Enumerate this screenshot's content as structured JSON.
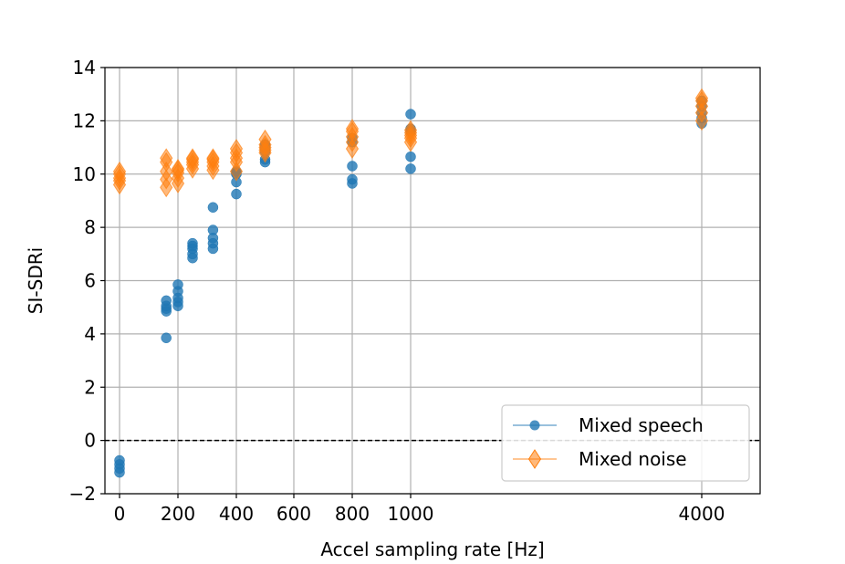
{
  "chart_data": {
    "type": "scatter",
    "xlabel": "Accel sampling rate [Hz]",
    "ylabel": "SI-SDRi",
    "ylim": [
      -2,
      14
    ],
    "yticks": [
      -2,
      0,
      2,
      4,
      6,
      8,
      10,
      12,
      14
    ],
    "ytick_labels": [
      "−2",
      "0",
      "2",
      "4",
      "6",
      "8",
      "10",
      "12",
      "14"
    ],
    "xticks": [
      {
        "value": 0,
        "label": "0"
      },
      {
        "value": 200,
        "label": "200"
      },
      {
        "value": 400,
        "label": "400"
      },
      {
        "value": 600,
        "label": "600"
      },
      {
        "value": 800,
        "label": "800"
      },
      {
        "value": 1000,
        "label": "1000"
      },
      {
        "value": 4000,
        "label": "4000"
      }
    ],
    "grid": true,
    "reference_line": {
      "y": 0,
      "style": "dashed",
      "color": "#000000"
    },
    "legend_position": "lower-right",
    "series": [
      {
        "name": "Mixed speech",
        "color": "#1f77b4",
        "marker": "circle",
        "points": [
          {
            "x": 0,
            "y": -0.75
          },
          {
            "x": 0,
            "y": -0.9
          },
          {
            "x": 0,
            "y": -1.05
          },
          {
            "x": 0,
            "y": -1.2
          },
          {
            "x": 160,
            "y": 3.85
          },
          {
            "x": 160,
            "y": 4.85
          },
          {
            "x": 160,
            "y": 4.95
          },
          {
            "x": 160,
            "y": 5.05
          },
          {
            "x": 160,
            "y": 5.25
          },
          {
            "x": 200,
            "y": 5.05
          },
          {
            "x": 200,
            "y": 5.2
          },
          {
            "x": 200,
            "y": 5.35
          },
          {
            "x": 200,
            "y": 5.6
          },
          {
            "x": 200,
            "y": 5.85
          },
          {
            "x": 250,
            "y": 6.85
          },
          {
            "x": 250,
            "y": 7.0
          },
          {
            "x": 250,
            "y": 7.2
          },
          {
            "x": 250,
            "y": 7.3
          },
          {
            "x": 250,
            "y": 7.4
          },
          {
            "x": 320,
            "y": 7.2
          },
          {
            "x": 320,
            "y": 7.4
          },
          {
            "x": 320,
            "y": 7.6
          },
          {
            "x": 320,
            "y": 7.9
          },
          {
            "x": 320,
            "y": 8.75
          },
          {
            "x": 400,
            "y": 9.25
          },
          {
            "x": 400,
            "y": 9.7
          },
          {
            "x": 400,
            "y": 10.0
          },
          {
            "x": 400,
            "y": 10.05
          },
          {
            "x": 400,
            "y": 10.1
          },
          {
            "x": 500,
            "y": 10.45
          },
          {
            "x": 500,
            "y": 10.55
          },
          {
            "x": 500,
            "y": 10.85
          },
          {
            "x": 500,
            "y": 11.0
          },
          {
            "x": 500,
            "y": 11.1
          },
          {
            "x": 800,
            "y": 9.65
          },
          {
            "x": 800,
            "y": 9.8
          },
          {
            "x": 800,
            "y": 10.3
          },
          {
            "x": 800,
            "y": 11.2
          },
          {
            "x": 800,
            "y": 11.35
          },
          {
            "x": 1000,
            "y": 10.2
          },
          {
            "x": 1000,
            "y": 10.65
          },
          {
            "x": 1000,
            "y": 11.6
          },
          {
            "x": 1000,
            "y": 11.7
          },
          {
            "x": 1000,
            "y": 12.25
          },
          {
            "x": 4000,
            "y": 11.9
          },
          {
            "x": 4000,
            "y": 12.1
          },
          {
            "x": 4000,
            "y": 12.3
          },
          {
            "x": 4000,
            "y": 12.55
          },
          {
            "x": 4000,
            "y": 12.75
          }
        ]
      },
      {
        "name": "Mixed noise",
        "color": "#ff7f0e",
        "marker": "diamond",
        "points": [
          {
            "x": 0,
            "y": 9.6
          },
          {
            "x": 0,
            "y": 9.75
          },
          {
            "x": 0,
            "y": 9.85
          },
          {
            "x": 0,
            "y": 10.0
          },
          {
            "x": 0,
            "y": 10.1
          },
          {
            "x": 160,
            "y": 9.5
          },
          {
            "x": 160,
            "y": 9.8
          },
          {
            "x": 160,
            "y": 10.1
          },
          {
            "x": 160,
            "y": 10.45
          },
          {
            "x": 160,
            "y": 10.6
          },
          {
            "x": 200,
            "y": 9.65
          },
          {
            "x": 200,
            "y": 9.85
          },
          {
            "x": 200,
            "y": 10.05
          },
          {
            "x": 200,
            "y": 10.15
          },
          {
            "x": 200,
            "y": 10.2
          },
          {
            "x": 250,
            "y": 10.2
          },
          {
            "x": 250,
            "y": 10.35
          },
          {
            "x": 250,
            "y": 10.45
          },
          {
            "x": 250,
            "y": 10.55
          },
          {
            "x": 250,
            "y": 10.6
          },
          {
            "x": 320,
            "y": 10.15
          },
          {
            "x": 320,
            "y": 10.3
          },
          {
            "x": 320,
            "y": 10.45
          },
          {
            "x": 320,
            "y": 10.55
          },
          {
            "x": 320,
            "y": 10.6
          },
          {
            "x": 400,
            "y": 10.1
          },
          {
            "x": 400,
            "y": 10.45
          },
          {
            "x": 400,
            "y": 10.6
          },
          {
            "x": 400,
            "y": 10.8
          },
          {
            "x": 400,
            "y": 10.95
          },
          {
            "x": 500,
            "y": 10.8
          },
          {
            "x": 500,
            "y": 10.9
          },
          {
            "x": 500,
            "y": 11.0
          },
          {
            "x": 500,
            "y": 11.1
          },
          {
            "x": 500,
            "y": 11.3
          },
          {
            "x": 800,
            "y": 10.95
          },
          {
            "x": 800,
            "y": 11.2
          },
          {
            "x": 800,
            "y": 11.4
          },
          {
            "x": 800,
            "y": 11.6
          },
          {
            "x": 800,
            "y": 11.7
          },
          {
            "x": 1000,
            "y": 11.2
          },
          {
            "x": 1000,
            "y": 11.35
          },
          {
            "x": 1000,
            "y": 11.45
          },
          {
            "x": 1000,
            "y": 11.55
          },
          {
            "x": 1000,
            "y": 11.65
          },
          {
            "x": 4000,
            "y": 12.0
          },
          {
            "x": 4000,
            "y": 12.3
          },
          {
            "x": 4000,
            "y": 12.55
          },
          {
            "x": 4000,
            "y": 12.75
          },
          {
            "x": 4000,
            "y": 12.85
          }
        ]
      }
    ]
  }
}
